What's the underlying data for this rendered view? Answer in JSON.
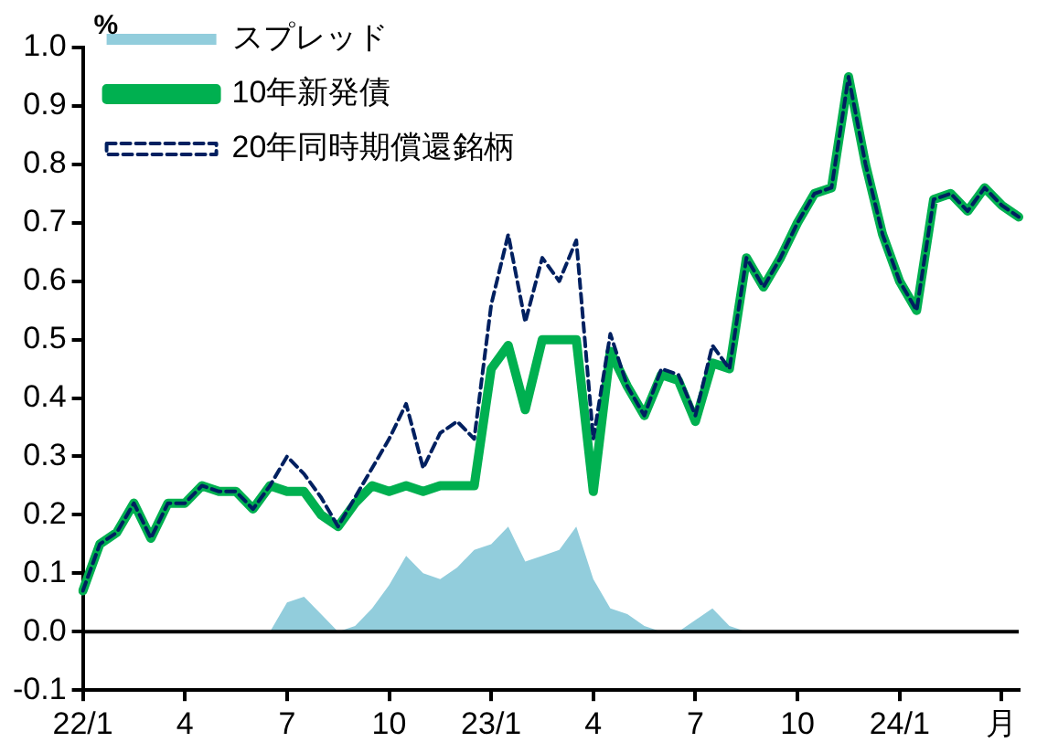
{
  "chart_data": {
    "type": "line",
    "ylabel": "%",
    "categories": [
      "22/1",
      null,
      null,
      null,
      null,
      null,
      "4",
      null,
      null,
      null,
      null,
      null,
      "7",
      null,
      null,
      null,
      null,
      null,
      "10",
      null,
      null,
      null,
      null,
      null,
      "23/1",
      null,
      null,
      null,
      null,
      null,
      "4",
      null,
      null,
      null,
      null,
      null,
      "7",
      null,
      null,
      null,
      null,
      null,
      "10",
      null,
      null,
      null,
      null,
      null,
      "24/1",
      null,
      null,
      null,
      null,
      null,
      "月",
      null
    ],
    "series": [
      {
        "name": "スプレッド",
        "type": "area",
        "color": "#92cddc",
        "values": [
          0,
          0,
          0,
          0,
          0,
          0,
          0,
          0,
          0,
          0,
          0,
          0,
          0.05,
          0.06,
          0.03,
          0,
          0.01,
          0.04,
          0.08,
          0.13,
          0.1,
          0.09,
          0.11,
          0.14,
          0.15,
          0.18,
          0.12,
          0.13,
          0.14,
          0.18,
          0.09,
          0.04,
          0.03,
          0.01,
          0,
          0,
          0.02,
          0.04,
          0.01,
          0,
          0,
          0,
          0,
          0,
          0,
          0,
          0,
          0,
          0,
          0,
          0,
          0,
          0,
          0,
          0,
          0
        ]
      },
      {
        "name": "10年新発債",
        "color": "#00b050",
        "values": [
          0.07,
          0.15,
          0.17,
          0.22,
          0.16,
          0.22,
          0.22,
          0.25,
          0.24,
          0.24,
          0.21,
          0.25,
          0.24,
          0.24,
          0.2,
          0.18,
          0.22,
          0.25,
          0.24,
          0.25,
          0.24,
          0.25,
          0.25,
          0.25,
          0.45,
          0.49,
          0.38,
          0.5,
          0.5,
          0.5,
          0.24,
          0.48,
          0.42,
          0.37,
          0.44,
          0.43,
          0.36,
          0.46,
          0.45,
          0.64,
          0.59,
          0.64,
          0.7,
          0.75,
          0.76,
          0.95,
          0.8,
          0.68,
          0.6,
          0.55,
          0.74,
          0.75,
          0.72,
          0.76,
          0.73,
          0.71
        ]
      },
      {
        "name": "20年同時期償還銘柄",
        "line_style": "dashed",
        "color": "#002060",
        "values": [
          0.07,
          0.15,
          0.17,
          0.22,
          0.16,
          0.22,
          0.22,
          0.25,
          0.24,
          0.24,
          0.21,
          0.25,
          0.3,
          0.27,
          0.23,
          0.18,
          0.23,
          0.28,
          0.33,
          0.39,
          0.28,
          0.34,
          0.36,
          0.33,
          0.56,
          0.68,
          0.53,
          0.64,
          0.6,
          0.67,
          0.33,
          0.51,
          0.42,
          0.37,
          0.45,
          0.44,
          0.37,
          0.49,
          0.45,
          0.64,
          0.59,
          0.64,
          0.7,
          0.75,
          0.76,
          0.95,
          0.8,
          0.68,
          0.6,
          0.55,
          0.74,
          0.75,
          0.72,
          0.76,
          0.73,
          0.71
        ]
      }
    ],
    "ylim": [
      -0.1,
      1.0
    ],
    "yticks": [
      {
        "value": -0.1,
        "label": "-0.1"
      },
      {
        "value": 0,
        "label": "0.0"
      },
      {
        "value": 0.1,
        "label": "0.1"
      },
      {
        "value": 0.2,
        "label": "0.2"
      },
      {
        "value": 0.3,
        "label": "0.3"
      },
      {
        "value": 0.4,
        "label": "0.4"
      },
      {
        "value": 0.5,
        "label": "0.5"
      },
      {
        "value": 0.6,
        "label": "0.6"
      },
      {
        "value": 0.7,
        "label": "0.7"
      },
      {
        "value": 0.8,
        "label": "0.8"
      },
      {
        "value": 0.9,
        "label": "0.9"
      },
      {
        "value": 1.0,
        "label": "1.0"
      }
    ],
    "ref_lines": [
      {
        "axis": "y",
        "value": 0,
        "color": "#000000"
      }
    ],
    "grid": false,
    "legend": "top left",
    "marker": "none"
  }
}
